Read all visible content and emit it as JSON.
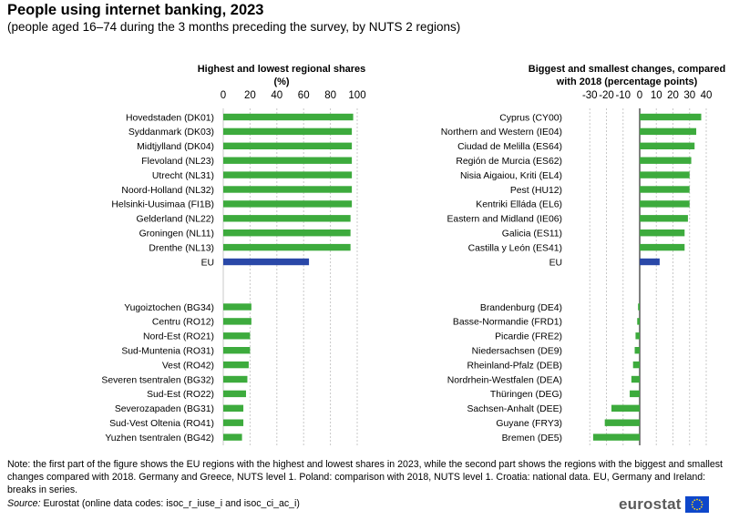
{
  "title": "People using internet banking, 2023",
  "subtitle": "(people aged 16–74 during the 3 months preceding the survey, by NUTS 2 regions)",
  "colors": {
    "green": "#3dab3d",
    "blue": "#2a48a8",
    "grid": "#c8c8c8",
    "flag": "#0e47cb",
    "flag_stars": "#ffd617"
  },
  "chart_data": [
    {
      "type": "bar",
      "orientation": "horizontal",
      "title_lines": [
        "Highest and lowest regional shares",
        "(%)"
      ],
      "xlim": [
        0,
        100
      ],
      "xticks": [
        0,
        20,
        40,
        60,
        80,
        100
      ],
      "grid": true,
      "categories": [
        "Hovedstaden (DK01)",
        "Syddanmark (DK03)",
        "Midtjylland (DK04)",
        "Flevoland (NL23)",
        "Utrecht (NL31)",
        "Noord-Holland (NL32)",
        "Helsinki-Uusimaa (FI1B)",
        "Gelderland (NL22)",
        "Groningen (NL11)",
        "Drenthe (NL13)",
        "EU",
        "Yugoiztochen (BG34)",
        "Centru (RO12)",
        "Nord-Est (RO21)",
        "Sud-Muntenia (RO31)",
        "Vest (RO42)",
        "Severen tsentralen (BG32)",
        "Sud-Est (RO22)",
        "Severozapaden (BG31)",
        "Sud-Vest Oltenia (RO41)",
        "Yuzhen tsentralen (BG42)"
      ],
      "values": [
        97,
        96,
        96,
        96,
        96,
        96,
        96,
        95,
        95,
        95,
        64,
        21,
        21,
        20,
        20,
        19,
        18,
        17,
        15,
        15,
        14
      ],
      "highlight": "EU"
    },
    {
      "type": "bar",
      "orientation": "horizontal",
      "title_lines": [
        "Biggest and smallest changes, compared",
        "with 2018 (percentage points)"
      ],
      "xlim": [
        -40,
        40
      ],
      "xticks": [
        -30,
        -20,
        -10,
        0,
        10,
        20,
        30,
        40
      ],
      "grid": true,
      "categories": [
        "Cyprus (CY00)",
        "Northern and Western (IE04)",
        "Ciudad de Melilla (ES64)",
        "Región de Murcia (ES62)",
        "Nisia Aigaiou, Kriti (EL4)",
        "Pest (HU12)",
        "Kentriki Elláda (EL6)",
        "Eastern and Midland (IE06)",
        "Galicia (ES11)",
        "Castilla y León (ES41)",
        "EU",
        "Brandenburg (DE4)",
        "Basse-Normandie (FRD1)",
        "Picardie (FRE2)",
        "Niedersachsen (DE9)",
        "Rheinland-Pfalz (DEB)",
        "Nordrhein-Westfalen (DEA)",
        "Thüringen (DEG)",
        "Sachsen-Anhalt (DEE)",
        "Guyane (FRY3)",
        "Bremen (DE5)"
      ],
      "values": [
        37,
        34,
        33,
        31,
        30,
        30,
        30,
        29,
        27,
        27,
        12,
        -1,
        -1.5,
        -2.5,
        -3,
        -4,
        -5,
        -6,
        -17,
        -21,
        -28
      ],
      "highlight": "EU"
    }
  ],
  "note": {
    "text": "Note: the first part of the figure shows the EU regions with the highest and lowest shares in 2023, while the second part shows the regions with the biggest and smallest changes compared with 2018. Germany and Greece, NUTS level 1. Poland: comparison with 2018, NUTS level 1. Croatia: national data. EU, Germany and Ireland: breaks in series.",
    "source_label": "Source:",
    "source_text": " Eurostat (online data codes: isoc_r_iuse_i and isoc_ci_ac_i)"
  },
  "logo": {
    "text": "eurostat"
  }
}
